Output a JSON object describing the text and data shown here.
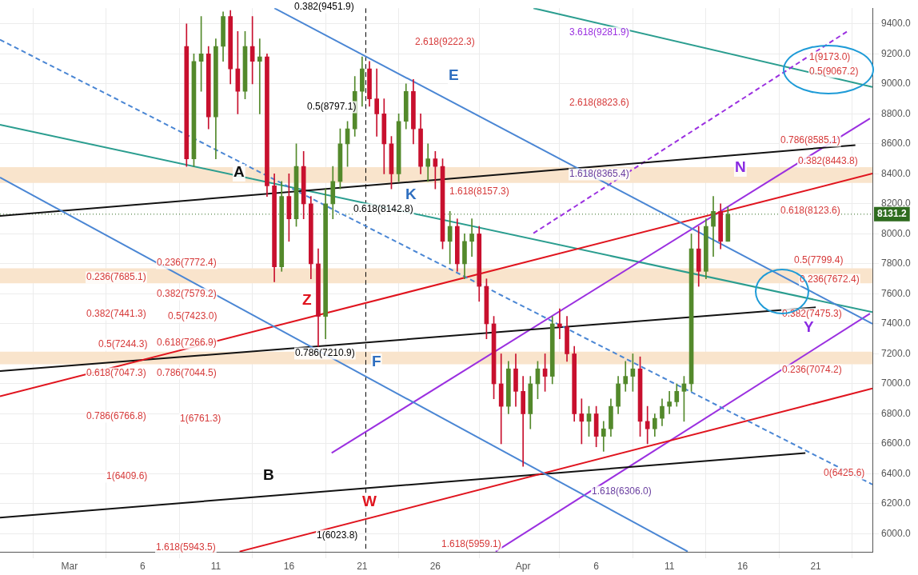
{
  "chart_data": {
    "type": "candlestick",
    "x": [
      "--03-09T00:00",
      "--03-09T12:00",
      "--03-10T00:00",
      "--03-10T12:00",
      "--03-11T00:00",
      "--03-11T12:00",
      "--03-12T00:00",
      "--03-12T12:00",
      "--03-13T00:00",
      "--03-13T12:00",
      "--03-14T00:00",
      "--03-14T12:00",
      "--03-15T00:00",
      "--03-15T12:00",
      "--03-16T00:00",
      "--03-16T12:00",
      "--03-17T00:00",
      "--03-17T12:00",
      "--03-18T00:00",
      "--03-18T12:00",
      "--03-19T00:00",
      "--03-19T12:00",
      "--03-20T00:00",
      "--03-20T12:00",
      "--03-21T00:00",
      "--03-21T12:00",
      "--03-22T00:00",
      "--03-22T12:00",
      "--03-23T00:00",
      "--03-23T12:00",
      "--03-24T00:00",
      "--03-24T12:00",
      "--03-25T00:00",
      "--03-25T12:00",
      "--03-26T00:00",
      "--03-26T12:00",
      "--03-27T00:00",
      "--03-27T12:00",
      "--03-28T00:00",
      "--03-28T12:00",
      "--03-29T00:00",
      "--03-29T12:00",
      "--03-30T00:00",
      "--03-30T12:00",
      "--03-31T00:00",
      "--03-31T12:00",
      "--04-01T00:00",
      "--04-01T12:00",
      "--04-02T00:00",
      "--04-02T12:00",
      "--04-03T00:00",
      "--04-03T12:00",
      "--04-04T00:00",
      "--04-04T12:00",
      "--04-05T00:00",
      "--04-05T12:00",
      "--04-06T00:00",
      "--04-06T12:00",
      "--04-07T00:00",
      "--04-07T12:00",
      "--04-08T00:00",
      "--04-08T12:00",
      "--04-09T00:00",
      "--04-09T12:00",
      "--04-10T00:00",
      "--04-10T12:00",
      "--04-11T00:00",
      "--04-11T12:00",
      "--04-12T00:00",
      "--04-12T12:00",
      "--04-13T00:00",
      "--04-13T12:00",
      "--04-14T00:00",
      "--04-14T12:00",
      "--04-15T00:00"
    ],
    "ohlc": [
      [
        9250,
        9400,
        8450,
        8500
      ],
      [
        8500,
        9200,
        8450,
        9150
      ],
      [
        9150,
        9450,
        8950,
        9200
      ],
      [
        9200,
        9250,
        8700,
        8780
      ],
      [
        8780,
        9300,
        8500,
        9250
      ],
      [
        9250,
        9480,
        9150,
        9450
      ],
      [
        9450,
        9490,
        9000,
        9100
      ],
      [
        9100,
        9350,
        8800,
        8950
      ],
      [
        8950,
        9350,
        8900,
        9250
      ],
      [
        9250,
        9450,
        9000,
        9150
      ],
      [
        9150,
        9300,
        8800,
        9180
      ],
      [
        9180,
        9200,
        8250,
        8320
      ],
      [
        8320,
        8400,
        7680,
        7780
      ],
      [
        7780,
        8350,
        7750,
        8250
      ],
      [
        8250,
        8400,
        7950,
        8100
      ],
      [
        8100,
        8600,
        8050,
        8450
      ],
      [
        8450,
        8550,
        8100,
        8200
      ],
      [
        8200,
        8250,
        7700,
        7800
      ],
      [
        7800,
        7900,
        7250,
        7450
      ],
      [
        7450,
        8300,
        7300,
        8200
      ],
      [
        8200,
        8450,
        8100,
        8350
      ],
      [
        8350,
        8700,
        8300,
        8600
      ],
      [
        8600,
        8750,
        8450,
        8700
      ],
      [
        8700,
        9050,
        8650,
        8950
      ],
      [
        8950,
        9180,
        8850,
        9100
      ],
      [
        9100,
        9150,
        8850,
        8900
      ],
      [
        8900,
        9100,
        8650,
        8800
      ],
      [
        8800,
        8900,
        8400,
        8600
      ],
      [
        8600,
        8650,
        8300,
        8400
      ],
      [
        8400,
        8800,
        8350,
        8750
      ],
      [
        8750,
        9000,
        8700,
        8950
      ],
      [
        8950,
        9030,
        8600,
        8700
      ],
      [
        8700,
        8800,
        8400,
        8450
      ],
      [
        8450,
        8600,
        8350,
        8500
      ],
      [
        8500,
        8550,
        8300,
        8450
      ],
      [
        8450,
        8500,
        7900,
        7950
      ],
      [
        7950,
        8150,
        7800,
        8050
      ],
      [
        8050,
        8100,
        7750,
        7800
      ],
      [
        7800,
        8000,
        7700,
        7950
      ],
      [
        7950,
        8100,
        7850,
        8000
      ],
      [
        8000,
        8050,
        7550,
        7650
      ],
      [
        7650,
        7700,
        7300,
        7400
      ],
      [
        7400,
        7450,
        6900,
        7000
      ],
      [
        7000,
        7200,
        6600,
        6850
      ],
      [
        6850,
        7150,
        6800,
        7100
      ],
      [
        7100,
        7200,
        6850,
        6950
      ],
      [
        6950,
        7050,
        6450,
        6800
      ],
      [
        6800,
        7050,
        6700,
        7000
      ],
      [
        7000,
        7150,
        6900,
        7100
      ],
      [
        7100,
        7200,
        6950,
        7050
      ],
      [
        7050,
        7450,
        7000,
        7400
      ],
      [
        7400,
        7500,
        7300,
        7380
      ],
      [
        7380,
        7450,
        7150,
        7200
      ],
      [
        7200,
        7250,
        6750,
        6800
      ],
      [
        6800,
        6900,
        6600,
        6750
      ],
      [
        6750,
        6850,
        6650,
        6800
      ],
      [
        6800,
        6850,
        6580,
        6650
      ],
      [
        6650,
        6750,
        6550,
        6700
      ],
      [
        6700,
        6900,
        6650,
        6850
      ],
      [
        6850,
        7050,
        6800,
        7000
      ],
      [
        7000,
        7150,
        6950,
        7050
      ],
      [
        7050,
        7200,
        6950,
        7100
      ],
      [
        7100,
        7180,
        6650,
        6750
      ],
      [
        6750,
        6850,
        6600,
        6700
      ],
      [
        6700,
        6800,
        6650,
        6770
      ],
      [
        6770,
        6900,
        6720,
        6850
      ],
      [
        6850,
        6950,
        6800,
        6880
      ],
      [
        6880,
        7000,
        6850,
        6950
      ],
      [
        6950,
        7050,
        6750,
        7000
      ],
      [
        7000,
        8000,
        6950,
        7900
      ],
      [
        7900,
        8050,
        7650,
        7750
      ],
      [
        7750,
        8100,
        7700,
        8050
      ],
      [
        8050,
        8250,
        7850,
        8150
      ],
      [
        8150,
        8200,
        7900,
        7950
      ],
      [
        7950,
        8180,
        7950,
        8131.2
      ]
    ],
    "colors": [
      "#c8102e",
      "#53892b",
      "#53892b",
      "#c8102e",
      "#53892b",
      "#53892b",
      "#c8102e",
      "#c8102e",
      "#53892b",
      "#c8102e",
      "#53892b",
      "#c8102e",
      "#c8102e",
      "#53892b",
      "#c8102e",
      "#53892b",
      "#c8102e",
      "#c8102e",
      "#c8102e",
      "#53892b",
      "#53892b",
      "#53892b",
      "#53892b",
      "#53892b",
      "#53892b",
      "#c8102e",
      "#c8102e",
      "#c8102e",
      "#c8102e",
      "#53892b",
      "#53892b",
      "#c8102e",
      "#c8102e",
      "#53892b",
      "#c8102e",
      "#c8102e",
      "#53892b",
      "#c8102e",
      "#53892b",
      "#53892b",
      "#c8102e",
      "#c8102e",
      "#c8102e",
      "#c8102e",
      "#53892b",
      "#c8102e",
      "#c8102e",
      "#53892b",
      "#53892b",
      "#c8102e",
      "#53892b",
      "#c8102e",
      "#c8102e",
      "#c8102e",
      "#c8102e",
      "#53892b",
      "#c8102e",
      "#53892b",
      "#53892b",
      "#53892b",
      "#53892b",
      "#53892b",
      "#c8102e",
      "#c8102e",
      "#53892b",
      "#53892b",
      "#53892b",
      "#53892b",
      "#53892b",
      "#53892b",
      "#c8102e",
      "#53892b",
      "#53892b",
      "#c8102e",
      "#53892b"
    ],
    "series": [
      {
        "type": "line",
        "color": "#4a86d4",
        "x": [
          "--03-15T00:00",
          "--04-24T21:00"
        ],
        "values": [
          9505,
          7400
        ]
      },
      {
        "type": "line",
        "color": "#4a86d4",
        "x": [
          "--02-24T06:00",
          "--04-12T06:00"
        ],
        "values": [
          8376,
          5882
        ]
      },
      {
        "type": "line",
        "color": "#4a86d4",
        "line_style": "dashed",
        "x": [
          "--02-24T06:00",
          "--04-24T21:00"
        ],
        "values": [
          9295,
          6329
        ]
      },
      {
        "type": "line",
        "color": "#e0141e",
        "x": [
          "--02-24T06:00",
          "--04-24T21:00"
        ],
        "values": [
          6917,
          8402
        ]
      },
      {
        "type": "line",
        "color": "#e0141e",
        "x": [
          "--03-12T15:00",
          "--04-24T21:00"
        ],
        "values": [
          5882,
          6969
        ]
      },
      {
        "type": "line",
        "color": "#111111",
        "x": [
          "--02-24T06:00",
          "--04-23T17:00"
        ],
        "values": [
          8119,
          8592
        ]
      },
      {
        "type": "line",
        "color": "#111111",
        "x": [
          "--02-24T06:00",
          "--04-21T00:00"
        ],
        "values": [
          7085,
          7510
        ]
      },
      {
        "type": "line",
        "color": "#111111",
        "x": [
          "--02-24T06:00",
          "--04-20T07:00"
        ],
        "values": [
          6108,
          6539
        ]
      },
      {
        "type": "line",
        "color": "#9b30e0",
        "x": [
          "--03-30T03:00",
          "--04-24T17:00"
        ],
        "values": [
          5882,
          7468
        ]
      },
      {
        "type": "line",
        "color": "#9b30e0",
        "x": [
          "--03-18T22:00",
          "--04-24T17:00"
        ],
        "values": [
          6539,
          8770
        ]
      },
      {
        "type": "line",
        "color": "#9b30e0",
        "line_style": "dashed",
        "x": [
          "--04-01T17:00",
          "--04-23T03:00"
        ],
        "values": [
          8004,
          9348
        ]
      },
      {
        "type": "line",
        "color": "#2a9d8f",
        "x": [
          "--02-24T06:00",
          "--04-24T21:00"
        ],
        "values": [
          8728,
          7478
        ]
      },
      {
        "type": "line",
        "color": "#2a9d8f",
        "x": [
          "--04-01T17:00",
          "--04-24T21:00"
        ],
        "values": [
          9505,
          8980
        ]
      }
    ],
    "bands": [
      {
        "axis": "y",
        "from": 8340,
        "to": 8445,
        "color": "#f9e4cc"
      },
      {
        "axis": "y",
        "from": 7670,
        "to": 7770,
        "color": "#f9e4cc"
      },
      {
        "axis": "y",
        "from": 7130,
        "to": 7215,
        "color": "#f9e4cc"
      }
    ],
    "ref_lines": [
      {
        "axis": "x",
        "value": "--03-21T06:00",
        "color": "#000000",
        "line_style": "dashed"
      },
      {
        "axis": "y",
        "value": 8131.2,
        "label": "8131.2",
        "color": "#2e6b1e",
        "line_style": "dotted"
      }
    ],
    "annotations": [
      "0.382(9451.9)",
      "2.618(9222.3)",
      "3.618(9281.9)",
      "1(9173.0)",
      "0.5(9067.2)",
      "0.5(8797.1)",
      "2.618(8823.6)",
      "0.786(8585.1)",
      "1.618(8365.4)",
      "0.382(8443.8)",
      "0.618(8142.8)",
      "1.618(8157.3)",
      "0.618(8123.6)",
      "0.236(7772.4)",
      "0.5(7799.4)",
      "0.236(7685.1)",
      "0.382(7579.2)",
      "0.236(7672.4)",
      "0.382(7441.3)",
      "0.5(7423.0)",
      "0.382(7475.3)",
      "0.5(7244.3)",
      "0.618(7266.9)",
      "0.786(7210.9)",
      "0.618(7047.3)",
      "0.786(7044.5)",
      "0.236(7074.2)",
      "0.786(6766.8)",
      "1(6761.3)",
      "1(6409.6)",
      "0(6425.6)",
      "1.618(6306.0)",
      "1(6023.8)",
      "1.618(5943.5)",
      "1.618(5959.1)",
      "A",
      "B",
      "E",
      "K",
      "Z",
      "F",
      "W",
      "N",
      "Y"
    ],
    "xlim": [
      "--02-24T06:00",
      "--04-24T21:00"
    ],
    "xticks": [
      {
        "value": "--03-01",
        "label": "Mar"
      },
      {
        "value": "--03-06",
        "label": "6"
      },
      {
        "value": "--03-11",
        "label": "11"
      },
      {
        "value": "--03-16",
        "label": "16"
      },
      {
        "value": "--03-21",
        "label": "21"
      },
      {
        "value": "--03-26",
        "label": "26"
      },
      {
        "value": "--04-01",
        "label": "Apr"
      },
      {
        "value": "--04-06",
        "label": "6"
      },
      {
        "value": "--04-11",
        "label": "11"
      },
      {
        "value": "--04-16",
        "label": "16"
      },
      {
        "value": "--04-21",
        "label": "21"
      }
    ],
    "ylim": [
      5880,
      9505
    ],
    "yticks": [
      {
        "value": 6000,
        "label": "6000.0"
      },
      {
        "value": 6200,
        "label": "6200.0"
      },
      {
        "value": 6400,
        "label": "6400.0"
      },
      {
        "value": 6600,
        "label": "6600.0"
      },
      {
        "value": 6800,
        "label": "6800.0"
      },
      {
        "value": 7000,
        "label": "7000.0"
      },
      {
        "value": 7200,
        "label": "7200.0"
      },
      {
        "value": 7400,
        "label": "7400.0"
      },
      {
        "value": 7600,
        "label": "7600.0"
      },
      {
        "value": 7800,
        "label": "7800.0"
      },
      {
        "value": 8000,
        "label": "8000.0"
      },
      {
        "value": 8200,
        "label": "8200.0"
      },
      {
        "value": 8400,
        "label": "8400.0"
      },
      {
        "value": 8600,
        "label": "8600.0"
      },
      {
        "value": 8800,
        "label": "8800.0"
      },
      {
        "value": 9000,
        "label": "9000.0"
      },
      {
        "value": 9200,
        "label": "9200.0"
      },
      {
        "value": 9400,
        "label": "9400.0"
      }
    ],
    "grid": true,
    "marker": "none"
  }
}
